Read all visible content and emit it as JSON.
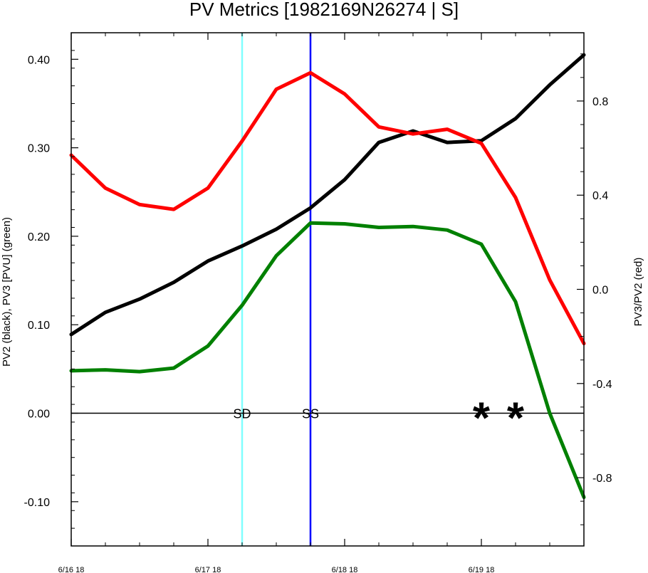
{
  "chart_data": {
    "type": "line",
    "title": "PV Metrics [1982169N26274 | S]",
    "ylabel_left": "PV2 (black), PV3 [PVU] (green)",
    "ylabel_right": "PV3/PV2 (red)",
    "x_ticks": [
      "6/16 18",
      "6/17 18",
      "6/18 18",
      "6/19 18"
    ],
    "x_tick_values": [
      0,
      24,
      48,
      72
    ],
    "xlim": [
      0,
      90
    ],
    "ylim_left": [
      -0.15,
      0.43
    ],
    "ylim_right": [
      -1.09,
      1.09
    ],
    "y_ticks_left": [
      "0.40",
      "0.30",
      "0.20",
      "0.10",
      "0.00",
      "-0.10"
    ],
    "y_tick_values_left": [
      0.4,
      0.3,
      0.2,
      0.1,
      0.0,
      -0.1
    ],
    "y_ticks_right": [
      "0.8",
      "0.4",
      "0.0",
      "-0.4",
      "-0.8"
    ],
    "y_tick_values_right": [
      0.8,
      0.4,
      0.0,
      -0.4,
      -0.8
    ],
    "x": [
      0,
      6,
      12,
      18,
      24,
      30,
      36,
      42,
      48,
      54,
      60,
      66,
      72,
      78,
      84,
      90
    ],
    "series": [
      {
        "name": "PV2",
        "axis": "left",
        "color": "#000000",
        "values": [
          0.089,
          0.114,
          0.129,
          0.148,
          0.172,
          0.189,
          0.208,
          0.232,
          0.264,
          0.306,
          0.319,
          0.306,
          0.308,
          0.333,
          0.371,
          0.405
        ]
      },
      {
        "name": "PV3",
        "axis": "left",
        "color": "#008000",
        "values": [
          0.048,
          0.049,
          0.047,
          0.051,
          0.076,
          0.122,
          0.178,
          0.215,
          0.214,
          0.21,
          0.211,
          0.207,
          0.191,
          0.126,
          0.0,
          -0.095
        ]
      },
      {
        "name": "PV3/PV2",
        "axis": "right",
        "color": "#ff0000",
        "values": [
          0.57,
          0.43,
          0.36,
          0.34,
          0.43,
          0.63,
          0.85,
          0.92,
          0.83,
          0.69,
          0.66,
          0.68,
          0.62,
          0.39,
          0.04,
          -0.23
        ]
      }
    ],
    "vertical_markers": [
      {
        "label": "SD",
        "x": 30,
        "color": "#80ffff"
      },
      {
        "label": "SS",
        "x": 42,
        "color": "#0000ff"
      }
    ],
    "zero_line": 0.0,
    "star_markers": {
      "symbol": "*",
      "x": [
        72,
        78
      ],
      "y": 0.0
    },
    "grid": false
  }
}
